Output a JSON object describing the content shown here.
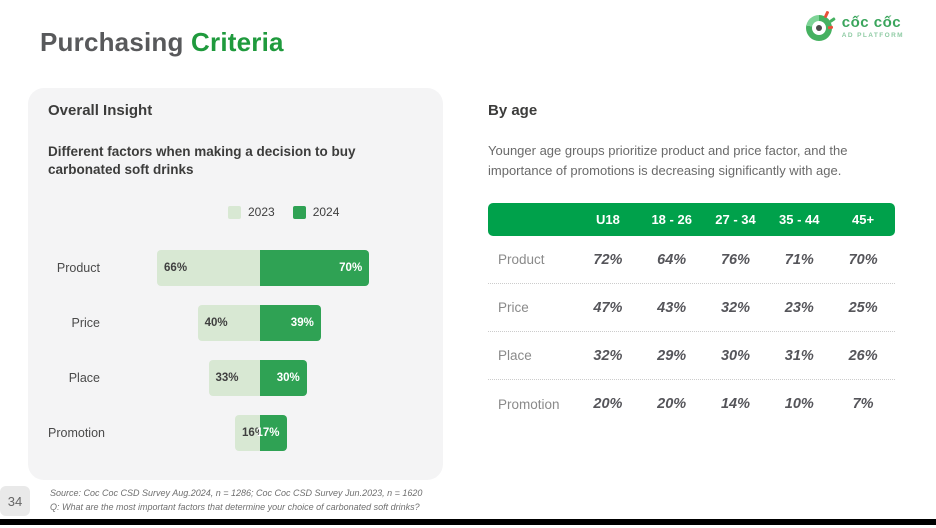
{
  "page": {
    "number": "34",
    "title_part1": "Purchasing",
    "title_part2": "Criteria"
  },
  "logo": {
    "name": "cốc cốc",
    "tagline": "AD PLATFORM"
  },
  "left_panel": {
    "heading": "Overall Insight",
    "subtitle": "Different factors when making a decision to buy carbonated soft drinks",
    "legend": [
      {
        "label": "2023",
        "color": "#d8e8d3"
      },
      {
        "label": "2024",
        "color": "#2fa254"
      }
    ]
  },
  "chart_data": {
    "type": "bar",
    "variant": "diverging-horizontal",
    "title": "Different factors when making a decision to buy carbonated soft drinks",
    "categories": [
      "Product",
      "Price",
      "Place",
      "Promotion"
    ],
    "series": [
      {
        "name": "2023",
        "values": [
          66,
          40,
          33,
          16
        ],
        "color": "#d8e8d3",
        "label_color": "#3f3f3f"
      },
      {
        "name": "2024",
        "values": [
          70,
          39,
          30,
          17
        ],
        "color": "#2fa254",
        "label_color": "#ffffff"
      }
    ],
    "unit": "%",
    "xlim": [
      0,
      100
    ],
    "legend_position": "top"
  },
  "right_panel": {
    "heading": "By age",
    "subtitle": "Younger age groups prioritize product and price factor, and the importance of promotions is decreasing significantly with age.",
    "table": {
      "header_color": "#00a14b",
      "columns": [
        "U18",
        "18 - 26",
        "27 - 34",
        "35 - 44",
        "45+"
      ],
      "rows": [
        {
          "label": "Product",
          "values": [
            "72%",
            "64%",
            "76%",
            "71%",
            "70%"
          ]
        },
        {
          "label": "Price",
          "values": [
            "47%",
            "43%",
            "32%",
            "23%",
            "25%"
          ]
        },
        {
          "label": "Place",
          "values": [
            "32%",
            "29%",
            "30%",
            "31%",
            "26%"
          ]
        },
        {
          "label": "Promotion",
          "values": [
            "20%",
            "20%",
            "14%",
            "10%",
            "7%"
          ]
        }
      ]
    }
  },
  "footer": {
    "source": "Source: Coc Coc CSD Survey Aug.2024, n = 1286; Coc Coc CSD Survey Jun.2023, n = 1620",
    "question": "Q: What are the most important factors that determine your choice of carbonated soft drinks?"
  },
  "colors": {
    "brand_green": "#1f9a3d",
    "table_header_green": "#00a14b",
    "bar_dark_green": "#2fa254",
    "bar_light_green": "#d8e8d3",
    "card_background": "#f4f4f5",
    "title_gray": "#58595b"
  }
}
